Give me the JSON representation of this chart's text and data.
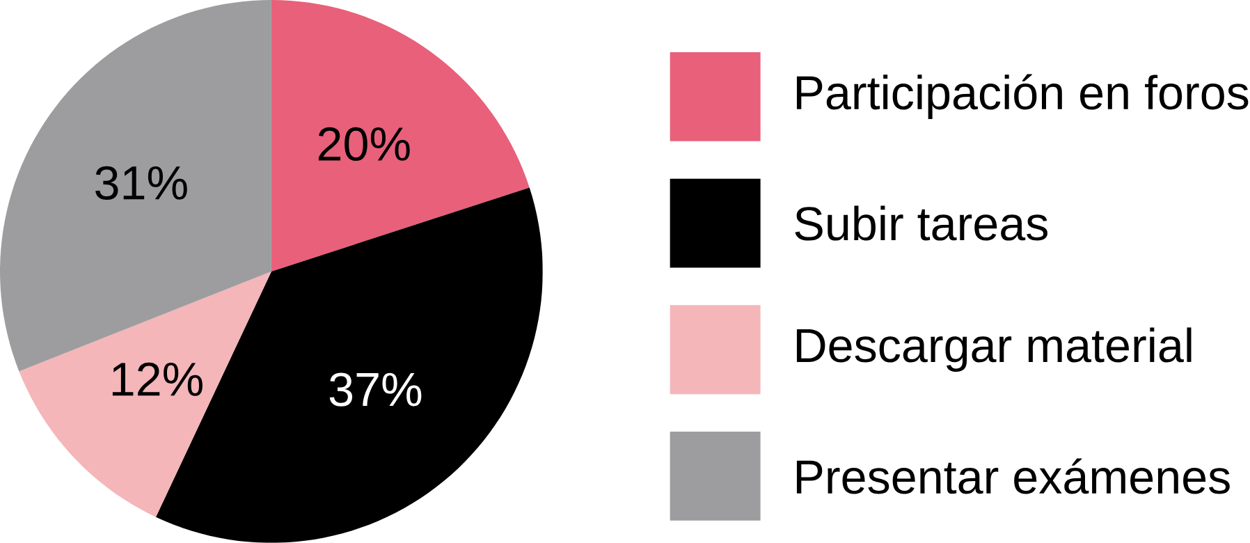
{
  "chart_data": {
    "type": "pie",
    "categories": [
      "Participación en foros",
      "Subir tareas",
      "Descargar material",
      "Presentar exámenes"
    ],
    "values": [
      20,
      37,
      12,
      31
    ],
    "value_labels": [
      "20%",
      "37%",
      "12%",
      "31%"
    ],
    "colors": [
      "#e8607a",
      "#000000",
      "#f4b6b9",
      "#9d9d9f"
    ],
    "legend": "right"
  }
}
